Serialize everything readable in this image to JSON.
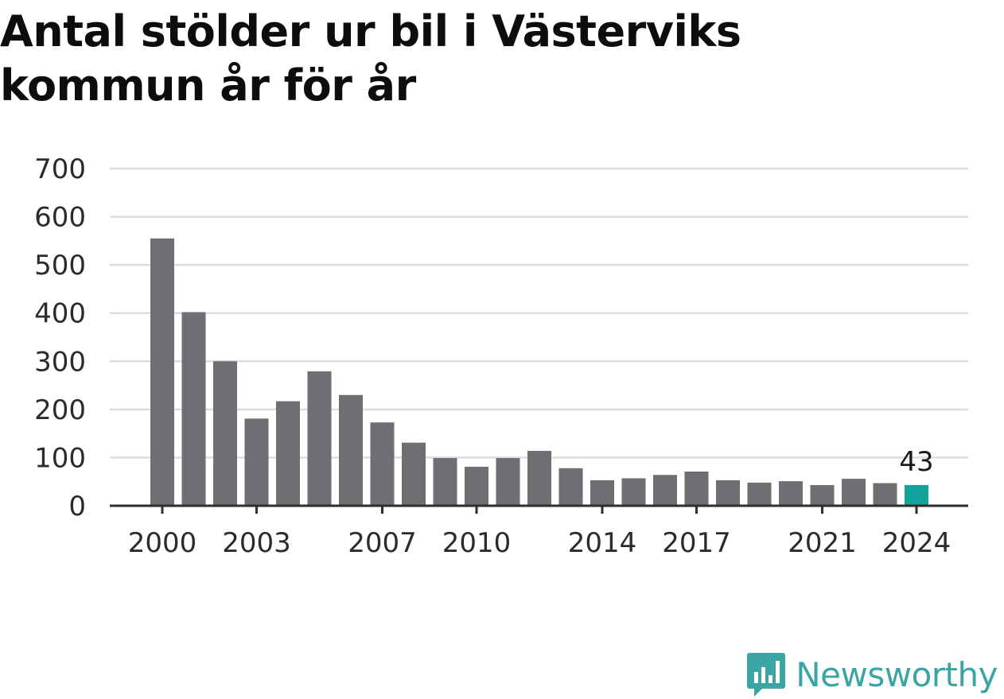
{
  "title": "Antal stölder ur bil i Västerviks kommun år för år",
  "brand": {
    "name": "Newsworthy",
    "icon": "newsworthy-logo-icon",
    "color": "#3aa5a2"
  },
  "colors": {
    "bar": "#6e6e73",
    "highlight": "#12a39a",
    "grid": "#dddddd",
    "axis": "#2e2e2e"
  },
  "chart_data": {
    "type": "bar",
    "title": "Antal stölder ur bil i Västerviks kommun år för år",
    "xlabel": "",
    "ylabel": "",
    "ylim": [
      0,
      700
    ],
    "yticks": [
      0,
      100,
      200,
      300,
      400,
      500,
      600,
      700
    ],
    "grid": true,
    "categories": [
      "2000",
      "2001",
      "2002",
      "2003",
      "2004",
      "2005",
      "2006",
      "2007",
      "2008",
      "2009",
      "2010",
      "2011",
      "2012",
      "2013",
      "2014",
      "2015",
      "2016",
      "2017",
      "2018",
      "2019",
      "2020",
      "2021",
      "2022",
      "2023",
      "2024"
    ],
    "xtick_labels": [
      "2000",
      "2003",
      "2007",
      "2010",
      "2014",
      "2017",
      "2021",
      "2024"
    ],
    "values": [
      555,
      402,
      300,
      181,
      217,
      279,
      230,
      173,
      131,
      99,
      81,
      99,
      114,
      78,
      53,
      57,
      64,
      71,
      53,
      48,
      51,
      43,
      56,
      47,
      43
    ],
    "highlight": {
      "category": "2024",
      "value": 43,
      "label": "43"
    }
  }
}
